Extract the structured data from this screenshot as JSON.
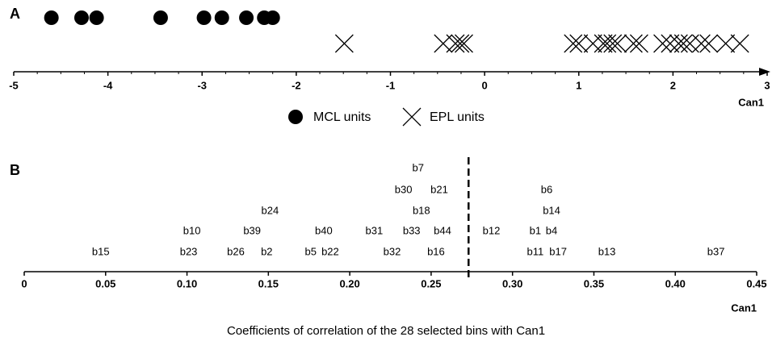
{
  "chart_data": [
    {
      "type": "strip",
      "panel_label": "A",
      "xlabel": "Can1",
      "xlim": [
        -5,
        3
      ],
      "xticks": [
        -5,
        -4,
        -3,
        -2,
        -1,
        0,
        1,
        2,
        3
      ],
      "series": [
        {
          "name": "MCL units",
          "marker": "circle",
          "color": "#000000",
          "x": [
            -4.6,
            -4.28,
            -4.12,
            -3.44,
            -2.98,
            -2.79,
            -2.53,
            -2.34,
            -2.25
          ]
        },
        {
          "name": "EPL units",
          "marker": "x",
          "color": "#000000",
          "x": [
            -1.49,
            -0.44,
            -0.31,
            -0.26,
            -0.22,
            0.94,
            1.0,
            1.15,
            1.26,
            1.3,
            1.36,
            1.41,
            1.58,
            1.64,
            1.89,
            1.97,
            2.06,
            2.11,
            2.18,
            2.3,
            2.38,
            2.56,
            2.71
          ]
        }
      ]
    },
    {
      "type": "labels",
      "panel_label": "B",
      "xlabel": "Can1",
      "caption": "Coefficients of correlation of the 28 selected bins with Can1",
      "xlim": [
        0,
        0.45
      ],
      "xticks": [
        0,
        0.05,
        {
          "value": 0.1,
          "label": "0.10"
        },
        0.15,
        {
          "value": 0.2,
          "label": "0.20"
        },
        0.25,
        {
          "value": 0.3,
          "label": "0.30"
        },
        0.35,
        {
          "value": 0.4,
          "label": "0.40"
        },
        0.45
      ],
      "categories": [
        "b15",
        "b23",
        "b26",
        "b2",
        "b5",
        "b22",
        "b32",
        "b16",
        "b11",
        "b17",
        "b13",
        "b37",
        "b10",
        "b39",
        "b40",
        "b31",
        "b33",
        "b44",
        "b12",
        "b1",
        "b4",
        "b24",
        "b18",
        "b14",
        "b30",
        "b21",
        "b6",
        "b7"
      ],
      "values": [
        0.047,
        0.101,
        0.13,
        0.149,
        0.176,
        0.188,
        0.226,
        0.253,
        0.314,
        0.328,
        0.358,
        0.425,
        0.103,
        0.14,
        0.184,
        0.215,
        0.238,
        0.257,
        0.287,
        0.314,
        0.324,
        0.151,
        0.244,
        0.324,
        0.233,
        0.255,
        0.321,
        0.242
      ],
      "reference_line": 0.273
    }
  ]
}
